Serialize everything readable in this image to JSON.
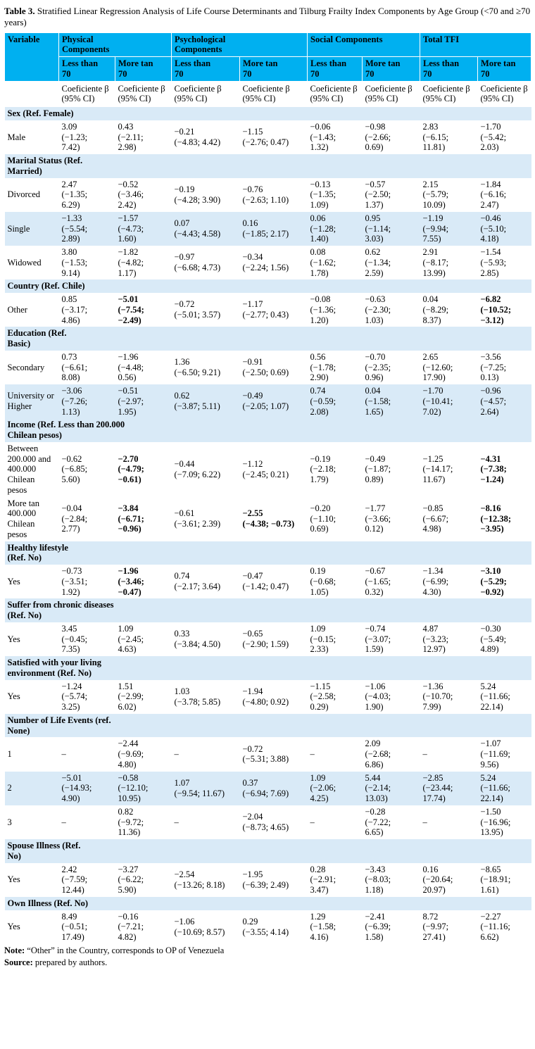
{
  "colors": {
    "header_bg": "#00B0F0",
    "shade_bg": "#D9EAF7",
    "text": "#000000"
  },
  "title": {
    "bold": "Table 3.",
    "rest": " Stratified Linear Regression Analysis of Life Course Determinants and Tilburg Frailty Index Components by Age Group (<70 and ≥70 years)"
  },
  "header": {
    "variable": "Variable",
    "groups": [
      "Physical\nComponents",
      "Psychological\nComponents",
      "Social Components",
      "Total TFI"
    ],
    "sub_lt": "Less than\n70",
    "sub_gt": "More tan\n70",
    "coef_line1": "Coeficiente β",
    "coef_line2": "(95% CI)"
  },
  "rows": [
    {
      "type": "section",
      "label": "Sex (Ref. Female)"
    },
    {
      "type": "data",
      "label": "Male",
      "cells": [
        {
          "b": "3.09",
          "ci": "(−1.23; 7.42)"
        },
        {
          "b": "0.43",
          "ci": "(−2.11; 2.98)"
        },
        {
          "b": "−0.21",
          "ci": "(−4.83; 4.42)"
        },
        {
          "b": "−1.15",
          "ci": "(−2.76; 0.47)"
        },
        {
          "b": "−0.06",
          "ci": "(−1.43; 1.32)"
        },
        {
          "b": "−0.98",
          "ci": "(−2.66; 0.69)"
        },
        {
          "b": "2.83",
          "ci": "(−6.15; 11.81)"
        },
        {
          "b": "−1.70",
          "ci": "(−5.42; 2.03)"
        }
      ]
    },
    {
      "type": "section",
      "label": "Marital Status (Ref.\nMarried)"
    },
    {
      "type": "data",
      "label": "Divorced",
      "cells": [
        {
          "b": "2.47",
          "ci": "(−1.35; 6.29)"
        },
        {
          "b": "−0.52",
          "ci": "(−3.46; 2.42)"
        },
        {
          "b": "−0.19",
          "ci": "(−4.28; 3.90)"
        },
        {
          "b": "−0.76",
          "ci": "(−2.63; 1.10)"
        },
        {
          "b": "−0.13",
          "ci": "(−1.35; 1.09)"
        },
        {
          "b": "−0.57",
          "ci": "(−2.50; 1.37)"
        },
        {
          "b": "2.15",
          "ci": "(−5.79; 10.09)"
        },
        {
          "b": "−1.84",
          "ci": "(−6.16; 2.47)"
        }
      ]
    },
    {
      "type": "data",
      "label": "Single",
      "shade": true,
      "cells": [
        {
          "b": "−1.33",
          "ci": "(−5.54; 2.89)"
        },
        {
          "b": "−1.57",
          "ci": "(−4.73; 1.60)"
        },
        {
          "b": "0.07",
          "ci": "(−4.43; 4.58)"
        },
        {
          "b": "0.16",
          "ci": "(−1.85; 2.17)"
        },
        {
          "b": "0.06",
          "ci": "(−1.28; 1.40)"
        },
        {
          "b": "0.95",
          "ci": "(−1.14; 3.03)"
        },
        {
          "b": "−1.19",
          "ci": "(−9.94; 7.55)"
        },
        {
          "b": "−0.46",
          "ci": "(−5.10; 4.18)"
        }
      ]
    },
    {
      "type": "data",
      "label": "Widowed",
      "cells": [
        {
          "b": "3.80",
          "ci": "(−1.53; 9.14)"
        },
        {
          "b": "−1.82",
          "ci": "(−4.82; 1.17)"
        },
        {
          "b": "−0.97",
          "ci": "(−6.68; 4.73)"
        },
        {
          "b": "−0.34",
          "ci": "(−2.24; 1.56)"
        },
        {
          "b": "0.08",
          "ci": "(−1.62; 1.78)"
        },
        {
          "b": "0.62",
          "ci": "(−1.34; 2.59)"
        },
        {
          "b": "2.91",
          "ci": "(−8.17; 13.99)"
        },
        {
          "b": "−1.54",
          "ci": "(−5.93; 2.85)"
        }
      ]
    },
    {
      "type": "section",
      "label": "Country (Ref. Chile)"
    },
    {
      "type": "data",
      "label": "Other",
      "cells": [
        {
          "b": "0.85",
          "ci": "(−3.17; 4.86)"
        },
        {
          "b": "−5.01",
          "ci": "(−7.54; −2.49)",
          "strong": true
        },
        {
          "b": "−0.72",
          "ci": "(−5.01; 3.57)"
        },
        {
          "b": "−1.17",
          "ci": "(−2.77; 0.43)"
        },
        {
          "b": "−0.08",
          "ci": "(−1.36; 1.20)"
        },
        {
          "b": "−0.63",
          "ci": "(−2.30; 1.03)"
        },
        {
          "b": "0.04",
          "ci": "(−8.29; 8.37)"
        },
        {
          "b": "−6.82",
          "ci": "(−10.52; −3.12)",
          "strong": true
        }
      ]
    },
    {
      "type": "section",
      "label": "Education (Ref.\nBasic)"
    },
    {
      "type": "data",
      "label": "Secondary",
      "cells": [
        {
          "b": "0.73",
          "ci": "(−6.61; 8.08)"
        },
        {
          "b": "−1.96",
          "ci": "(−4.48; 0.56)"
        },
        {
          "b": "1.36",
          "ci": "(−6.50; 9.21)"
        },
        {
          "b": "−0.91",
          "ci": "(−2.50; 0.69)"
        },
        {
          "b": "0.56",
          "ci": "(−1.78; 2.90)"
        },
        {
          "b": "−0.70",
          "ci": "(−2.35; 0.96)"
        },
        {
          "b": "2.65",
          "ci": "(−12.60; 17.90)"
        },
        {
          "b": "−3.56",
          "ci": "(−7.25; 0.13)"
        }
      ]
    },
    {
      "type": "data",
      "label": "University or Higher",
      "shade": true,
      "cells": [
        {
          "b": "−3.06",
          "ci": "(−7.26; 1.13)"
        },
        {
          "b": "−0.51",
          "ci": "(−2.97; 1.95)"
        },
        {
          "b": "0.62",
          "ci": "(−3.87; 5.11)"
        },
        {
          "b": "−0.49",
          "ci": "(−2.05; 1.07)"
        },
        {
          "b": "0.74",
          "ci": "(−0.59; 2.08)"
        },
        {
          "b": "0.04",
          "ci": "(−1.58; 1.65)"
        },
        {
          "b": "−1.70",
          "ci": "(−10.41; 7.02)"
        },
        {
          "b": "−0.96",
          "ci": "(−4.57; 2.64)"
        }
      ]
    },
    {
      "type": "section",
      "label": "Income (Ref. Less than 200.000\nChilean pesos)"
    },
    {
      "type": "data",
      "label": "Between 200.000 and 400.000 Chilean pesos",
      "cells": [
        {
          "b": "−0.62",
          "ci": "(−6.85; 5.60)"
        },
        {
          "b": "−2.70",
          "ci": "(−4.79; −0.61)",
          "strong": true
        },
        {
          "b": "−0.44",
          "ci": "(−7.09; 6.22)"
        },
        {
          "b": "−1.12",
          "ci": "(−2.45; 0.21)"
        },
        {
          "b": "−0.19",
          "ci": "(−2.18; 1.79)"
        },
        {
          "b": "−0.49",
          "ci": "(−1.87; 0.89)"
        },
        {
          "b": "−1.25",
          "ci": "(−14.17; 11.67)"
        },
        {
          "b": "−4.31",
          "ci": "(−7.38; −1.24)",
          "strong": true
        }
      ]
    },
    {
      "type": "data",
      "label": "More tan 400.000 Chilean pesos",
      "cells": [
        {
          "b": "−0.04",
          "ci": "(−2.84; 2.77)"
        },
        {
          "b": "−3.84",
          "ci": "(−6.71; −0.96)",
          "strong": true
        },
        {
          "b": "−0.61",
          "ci": "(−3.61; 2.39)"
        },
        {
          "b": "−2.55",
          "ci": "(−4.38; −0.73)",
          "strong": true
        },
        {
          "b": "−0.20",
          "ci": "(−1.10; 0.69)"
        },
        {
          "b": "−1.77",
          "ci": "(−3.66; 0.12)"
        },
        {
          "b": "−0.85",
          "ci": "(−6.67; 4.98)"
        },
        {
          "b": "−8.16",
          "ci": "(−12.38; −3.95)",
          "strong": true
        }
      ]
    },
    {
      "type": "section",
      "label": "Healthy lifestyle\n(Ref. No)"
    },
    {
      "type": "data",
      "label": "Yes",
      "cells": [
        {
          "b": "−0.73",
          "ci": "(−3.51; 1.92)"
        },
        {
          "b": "−1.96",
          "ci": "(−3.46; −0.47)",
          "strong": true
        },
        {
          "b": "0.74",
          "ci": "(−2.17; 3.64)"
        },
        {
          "b": "−0.47",
          "ci": "(−1.42; 0.47)"
        },
        {
          "b": "0.19",
          "ci": "(−0.68; 1.05)"
        },
        {
          "b": "−0.67",
          "ci": "(−1.65; 0.32)"
        },
        {
          "b": "−1.34",
          "ci": "(−6.99; 4.30)"
        },
        {
          "b": "−3.10",
          "ci": "(−5.29; −0.92)",
          "strong": true
        }
      ]
    },
    {
      "type": "section",
      "label": "Suffer from chronic diseases\n(Ref. No)"
    },
    {
      "type": "data",
      "label": "Yes",
      "cells": [
        {
          "b": "3.45",
          "ci": "(−0.45; 7.35)"
        },
        {
          "b": "1.09",
          "ci": "(−2.45; 4.63)"
        },
        {
          "b": "0.33",
          "ci": "(−3.84; 4.50)"
        },
        {
          "b": "−0.65",
          "ci": "(−2.90; 1.59)"
        },
        {
          "b": "1.09",
          "ci": "(−0.15; 2.33)"
        },
        {
          "b": "−0.74",
          "ci": "(−3.07; 1.59)"
        },
        {
          "b": "4.87",
          "ci": "(−3.23; 12.97)"
        },
        {
          "b": "−0.30",
          "ci": "(−5.49; 4.89)"
        }
      ]
    },
    {
      "type": "section",
      "label": "Satisfied with your living\nenvironment (Ref. No)"
    },
    {
      "type": "data",
      "label": "Yes",
      "cells": [
        {
          "b": "−1.24",
          "ci": "(−5.74; 3.25)"
        },
        {
          "b": "1.51",
          "ci": "(−2.99; 6.02)"
        },
        {
          "b": "1.03",
          "ci": "(−3.78; 5.85)"
        },
        {
          "b": "−1.94",
          "ci": "(−4.80; 0.92)"
        },
        {
          "b": "−1.15",
          "ci": "(−2.58; 0.29)"
        },
        {
          "b": "−1.06",
          "ci": "(−4.03; 1.90)"
        },
        {
          "b": "−1.36",
          "ci": "(−10.70; 7.99)"
        },
        {
          "b": "5.24",
          "ci": "(−11.66; 22.14)"
        }
      ]
    },
    {
      "type": "section",
      "label": "Number of Life Events (ref.\nNone)"
    },
    {
      "type": "data",
      "label": "1",
      "cells": [
        {
          "b": "–",
          "ci": ""
        },
        {
          "b": "−2.44",
          "ci": "(−9.69; 4.80)"
        },
        {
          "b": "–",
          "ci": ""
        },
        {
          "b": "−0.72",
          "ci": "(−5.31; 3.88)"
        },
        {
          "b": "–",
          "ci": ""
        },
        {
          "b": "2.09",
          "ci": "(−2.68; 6.86)"
        },
        {
          "b": "–",
          "ci": ""
        },
        {
          "b": "−1.07",
          "ci": "(−11.69; 9.56)"
        }
      ]
    },
    {
      "type": "data",
      "label": "2",
      "shade": true,
      "cells": [
        {
          "b": "−5.01",
          "ci": "(−14.93; 4.90)"
        },
        {
          "b": "−0.58",
          "ci": "(−12.10; 10.95)"
        },
        {
          "b": "1.07",
          "ci": "(−9.54; 11.67)"
        },
        {
          "b": "0.37",
          "ci": "(−6.94; 7.69)"
        },
        {
          "b": "1.09",
          "ci": "(−2.06; 4.25)"
        },
        {
          "b": "5.44",
          "ci": "(−2.14; 13.03)"
        },
        {
          "b": "−2.85",
          "ci": "(−23.44; 17.74)"
        },
        {
          "b": "5.24",
          "ci": "(−11.66; 22.14)"
        }
      ]
    },
    {
      "type": "data",
      "label": "3",
      "cells": [
        {
          "b": "–",
          "ci": ""
        },
        {
          "b": "0.82",
          "ci": "(−9.72; 11.36)"
        },
        {
          "b": "–",
          "ci": ""
        },
        {
          "b": "−2.04",
          "ci": "(−8.73; 4.65)"
        },
        {
          "b": "–",
          "ci": ""
        },
        {
          "b": "−0.28",
          "ci": "(−7.22; 6.65)"
        },
        {
          "b": "–",
          "ci": ""
        },
        {
          "b": "−1.50",
          "ci": "(−16.96; 13.95)"
        }
      ]
    },
    {
      "type": "section",
      "label": "Spouse Illness (Ref.\nNo)"
    },
    {
      "type": "data",
      "label": "Yes",
      "cells": [
        {
          "b": "2.42",
          "ci": "(−7.59; 12.44)"
        },
        {
          "b": "−3.27",
          "ci": "(−6.22; 5.90)"
        },
        {
          "b": "−2.54",
          "ci": "(−13.26; 8.18)"
        },
        {
          "b": "−1.95",
          "ci": "(−6.39; 2.49)"
        },
        {
          "b": "0.28",
          "ci": "(−2.91; 3.47)"
        },
        {
          "b": "−3.43",
          "ci": "(−8.03; 1.18)"
        },
        {
          "b": "0.16",
          "ci": "(−20.64; 20.97)"
        },
        {
          "b": "−8.65",
          "ci": "(−18.91; 1.61)"
        }
      ]
    },
    {
      "type": "section",
      "label": "Own Illness (Ref. No)"
    },
    {
      "type": "data",
      "label": "Yes",
      "cells": [
        {
          "b": "8.49",
          "ci": "(−0.51; 17.49)"
        },
        {
          "b": "−0.16",
          "ci": "(−7.21; 4.82)"
        },
        {
          "b": "−1.06",
          "ci": "(−10.69; 8.57)"
        },
        {
          "b": "0.29",
          "ci": "(−3.55; 4.14)"
        },
        {
          "b": "1.29",
          "ci": "(−1.58; 4.16)"
        },
        {
          "b": "−2.41",
          "ci": "(−6.39; 1.58)"
        },
        {
          "b": "8.72",
          "ci": "(−9.97; 27.41)"
        },
        {
          "b": "−2.27",
          "ci": "(−11.16; 6.62)"
        }
      ]
    }
  ],
  "footer": {
    "note": {
      "label": "Note:",
      "text": " “Other” in the Country, corresponds to OP of Venezuela"
    },
    "source": {
      "label": "Source:",
      "text": " prepared by authors."
    }
  }
}
